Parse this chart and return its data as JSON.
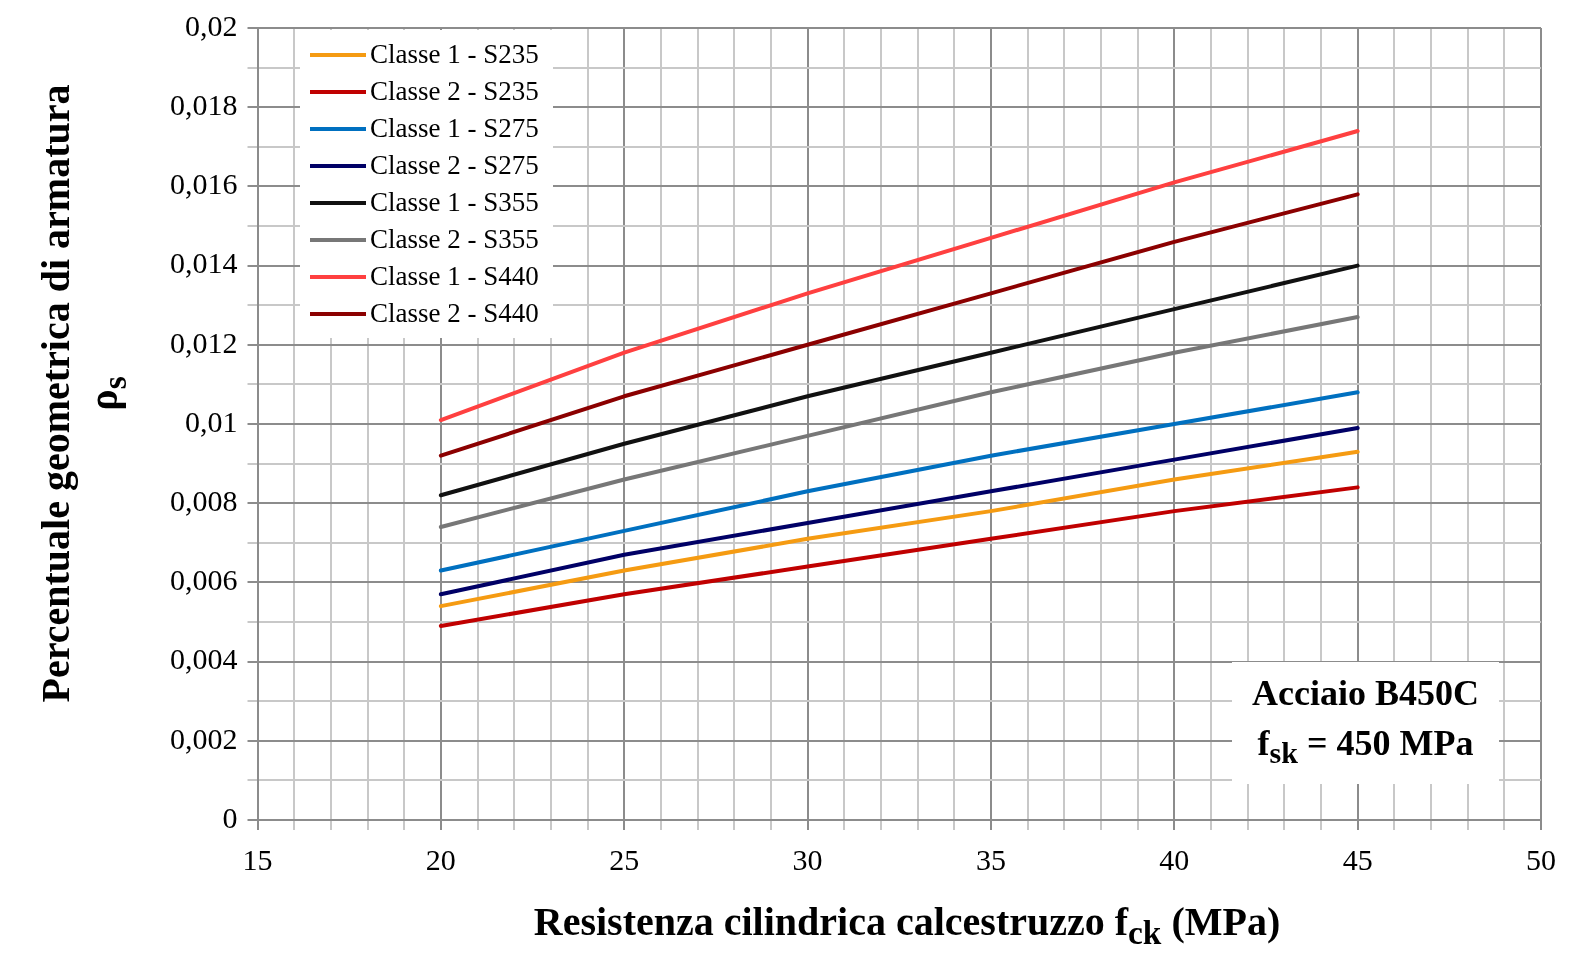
{
  "chart_data": {
    "type": "line",
    "xlabel": "Resistenza cilindrica calcestruzzo f$_{ck}$ (MPa)",
    "ylabel": "Percentuale geometrica di armatura ρ$_{s}$",
    "x": [
      20,
      25,
      30,
      35,
      40,
      45
    ],
    "series": [
      {
        "name": "Classe 1 - S235",
        "color": "#f59b12",
        "values": [
          0.0054,
          0.0063,
          0.0071,
          0.0078,
          0.0086,
          0.0093
        ]
      },
      {
        "name": "Classe 2 - S235",
        "color": "#c00000",
        "values": [
          0.0049,
          0.0057,
          0.0064,
          0.0071,
          0.0078,
          0.0084
        ]
      },
      {
        "name": "Classe 1 - S275",
        "color": "#0070c0",
        "values": [
          0.0063,
          0.0073,
          0.0083,
          0.0092,
          0.01,
          0.0108
        ]
      },
      {
        "name": "Classe 2 - S275",
        "color": "#000066",
        "values": [
          0.0057,
          0.0067,
          0.0075,
          0.0083,
          0.0091,
          0.0099
        ]
      },
      {
        "name": "Classe 1 - S355",
        "color": "#111111",
        "values": [
          0.0082,
          0.0095,
          0.0107,
          0.0118,
          0.0129,
          0.014
        ]
      },
      {
        "name": "Classe 2 - S355",
        "color": "#777777",
        "values": [
          0.0074,
          0.0086,
          0.0097,
          0.0108,
          0.0118,
          0.0127
        ]
      },
      {
        "name": "Classe 1 - S440",
        "color": "#ff4040",
        "values": [
          0.0101,
          0.0118,
          0.0133,
          0.0147,
          0.0161,
          0.0174
        ]
      },
      {
        "name": "Classe 2 - S440",
        "color": "#8b0000",
        "values": [
          0.0092,
          0.0107,
          0.012,
          0.0133,
          0.0146,
          0.0158
        ]
      }
    ],
    "xlim": [
      15,
      50
    ],
    "xticks": [
      15,
      {
        "value": 16,
        "label": null
      },
      {
        "value": 17,
        "label": null
      },
      {
        "value": 18,
        "label": null
      },
      {
        "value": 19,
        "label": null
      },
      20,
      {
        "value": 21,
        "label": null
      },
      {
        "value": 22,
        "label": null
      },
      {
        "value": 23,
        "label": null
      },
      {
        "value": 24,
        "label": null
      },
      25,
      {
        "value": 26,
        "label": null
      },
      {
        "value": 27,
        "label": null
      },
      {
        "value": 28,
        "label": null
      },
      {
        "value": 29,
        "label": null
      },
      30,
      {
        "value": 31,
        "label": null
      },
      {
        "value": 32,
        "label": null
      },
      {
        "value": 33,
        "label": null
      },
      {
        "value": 34,
        "label": null
      },
      35,
      {
        "value": 36,
        "label": null
      },
      {
        "value": 37,
        "label": null
      },
      {
        "value": 38,
        "label": null
      },
      {
        "value": 39,
        "label": null
      },
      40,
      {
        "value": 41,
        "label": null
      },
      {
        "value": 42,
        "label": null
      },
      {
        "value": 43,
        "label": null
      },
      {
        "value": 44,
        "label": null
      },
      45,
      {
        "value": 46,
        "label": null
      },
      {
        "value": 47,
        "label": null
      },
      {
        "value": 48,
        "label": null
      },
      {
        "value": 49,
        "label": null
      },
      50
    ],
    "ylim": [
      0,
      0.02
    ],
    "yticks": [
      0,
      {
        "value": 0.001,
        "label": null
      },
      {
        "value": 0.002,
        "label": "0,002"
      },
      {
        "value": 0.003,
        "label": null
      },
      {
        "value": 0.004,
        "label": "0,004"
      },
      {
        "value": 0.005,
        "label": null
      },
      {
        "value": 0.006,
        "label": "0,006"
      },
      {
        "value": 0.007,
        "label": null
      },
      {
        "value": 0.008,
        "label": "0,008"
      },
      {
        "value": 0.009,
        "label": null
      },
      {
        "value": 0.01,
        "label": "0,01"
      },
      {
        "value": 0.011,
        "label": null
      },
      {
        "value": 0.012,
        "label": "0,012"
      },
      {
        "value": 0.013,
        "label": null
      },
      {
        "value": 0.014,
        "label": "0,014"
      },
      {
        "value": 0.015,
        "label": null
      },
      {
        "value": 0.016,
        "label": "0,016"
      },
      {
        "value": 0.017,
        "label": null
      },
      {
        "value": 0.018,
        "label": "0,018"
      },
      {
        "value": 0.019,
        "label": null
      },
      {
        "value": 0.02,
        "label": "0,02"
      }
    ],
    "grid": true,
    "legend": "top left",
    "marker": "none",
    "line_style": "solid",
    "annotations": [
      "Acciaio B450C",
      "f$_{sk}$ = 450 MPa"
    ]
  }
}
